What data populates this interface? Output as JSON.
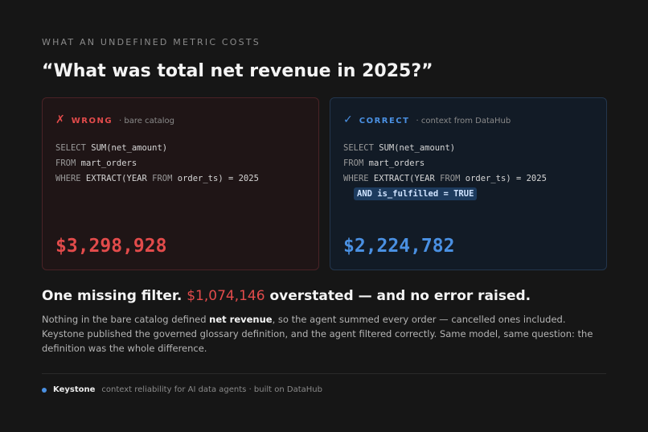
{
  "eyebrow": "WHAT AN UNDEFINED METRIC COSTS",
  "question": "“What was total net revenue in 2025?”",
  "wrong": {
    "mark": "✗",
    "badge": "WRONG",
    "source": "· bare catalog",
    "sql": [
      [
        "SELECT",
        " SUM(net_amount)"
      ],
      [
        "FROM",
        " mart_orders"
      ],
      [
        "WHERE",
        " EXTRACT(YEAR ",
        "FROM",
        " order_ts) = 2025"
      ]
    ],
    "amount": "$3,298,928"
  },
  "right": {
    "mark": "✓",
    "badge": "CORRECT",
    "source": "· context from DataHub",
    "sql": [
      [
        "SELECT",
        " SUM(net_amount)"
      ],
      [
        "FROM",
        " mart_orders"
      ],
      [
        "WHERE",
        " EXTRACT(YEAR ",
        "FROM",
        " order_ts) = 2025"
      ]
    ],
    "highlight": "AND is_fulfilled = TRUE",
    "amount": "$2,224,782"
  },
  "headline": {
    "lead": "One missing filter. ",
    "amount": "$1,074,146",
    "tail": " overstated — and no error raised."
  },
  "body": {
    "part1": "Nothing in the bare catalog defined ",
    "term": "net revenue",
    "part2": ", so the agent summed every order — cancelled ones included. Keystone published the governed glossary definition, and the agent filtered correctly. Same model, same question: the definition was the whole difference."
  },
  "footer": {
    "brand": "Keystone",
    "tagline": "context reliability for AI data agents · built on DataHub"
  },
  "colors": {
    "wrong": "#e24b4b",
    "correct": "#4a90e2",
    "background": "#161616"
  }
}
